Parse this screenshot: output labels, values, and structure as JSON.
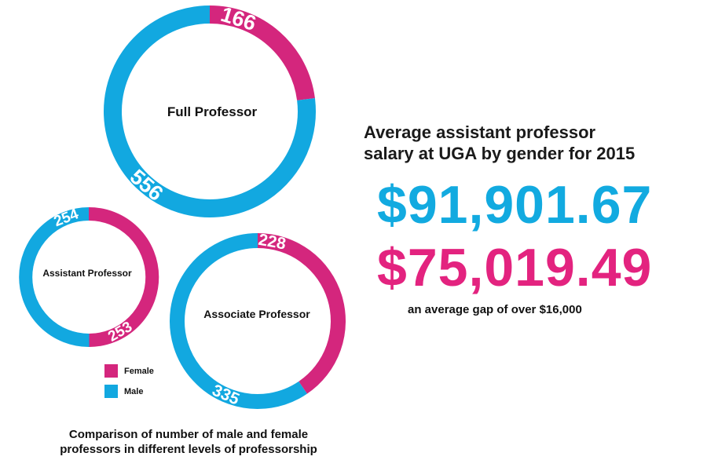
{
  "colors": {
    "female": "#d4267d",
    "male": "#12a8e0"
  },
  "chart_data": {
    "type": "pie",
    "charts": [
      {
        "label": "Full Professor",
        "female": 166,
        "male": 556
      },
      {
        "label": "Assistant Professor",
        "female": 253,
        "male": 254
      },
      {
        "label": "Associate Professor",
        "female": 228,
        "male": 335
      }
    ],
    "legend": [
      {
        "name": "Female",
        "color": "#d4267d"
      },
      {
        "name": "Male",
        "color": "#12a8e0"
      }
    ],
    "caption_lines": [
      "Comparison of number of male and female",
      "professors in different levels of professorship"
    ]
  },
  "salary": {
    "title_lines": [
      "Average assistant professor",
      "salary at UGA by gender for 2015"
    ],
    "male_value": "$91,901.67",
    "female_value": "$75,019.49",
    "note": "an average gap of over $16,000"
  }
}
